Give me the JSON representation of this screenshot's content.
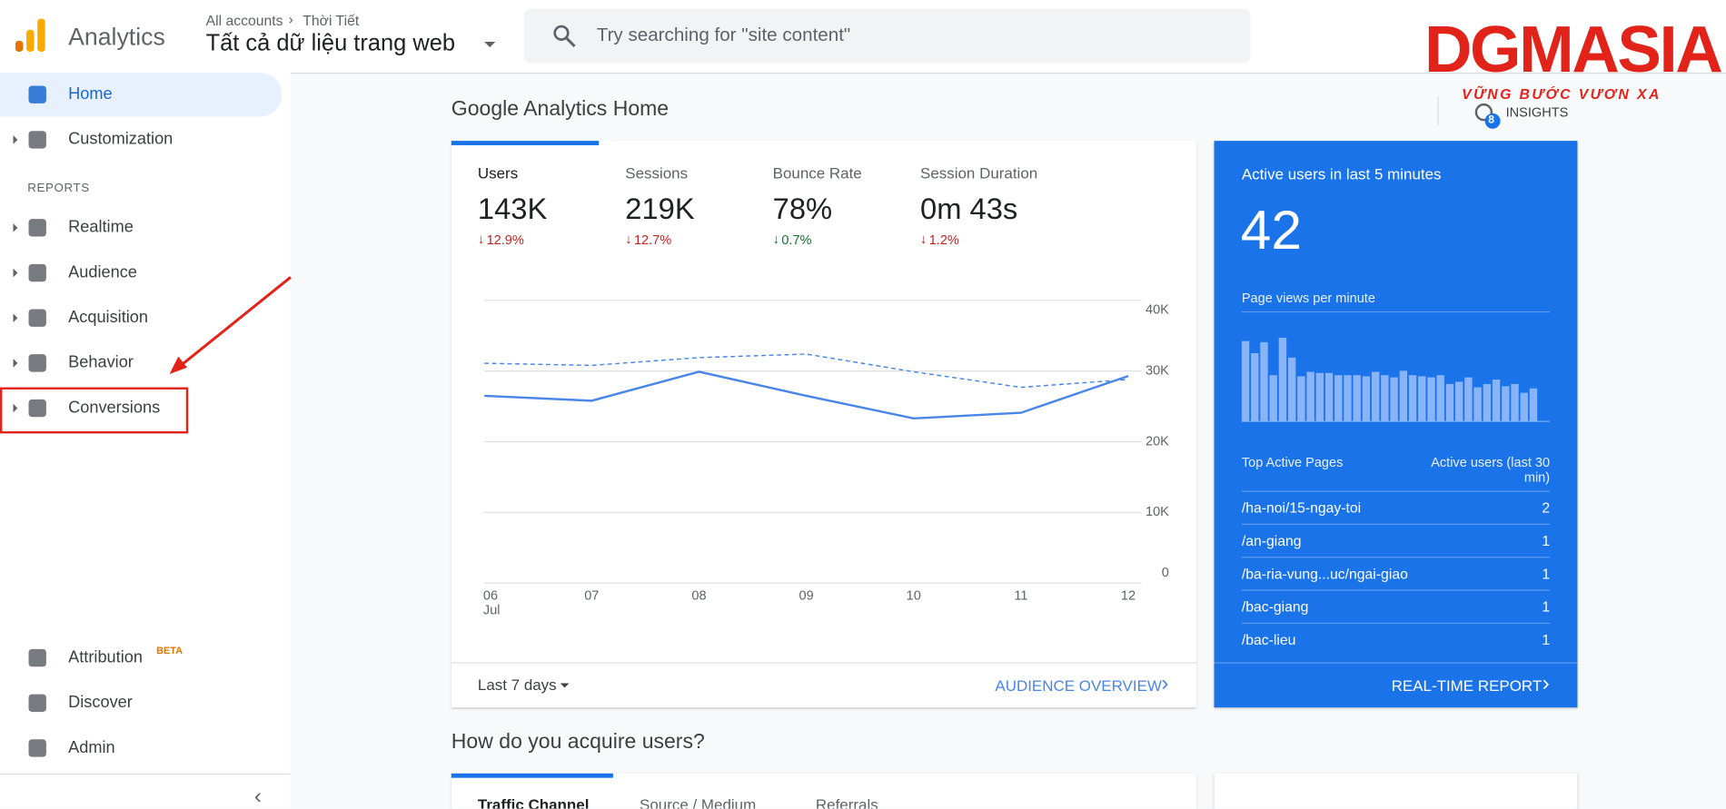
{
  "header": {
    "product": "Analytics",
    "breadcrumb": [
      "All accounts",
      "Thời Tiết"
    ],
    "view": "Tất cả dữ liệu trang web",
    "search_placeholder": "Try searching for \"site content\"",
    "insights": "INSIGHTS",
    "insights_badge": "8",
    "watermark": {
      "brand": "DGMASIA",
      "slogan": "VỮNG BƯỚC VƯƠN XA"
    }
  },
  "nav": {
    "top": [
      {
        "label": "Home",
        "expandable": false
      },
      {
        "label": "Customization",
        "expandable": true
      }
    ],
    "section": "REPORTS",
    "reports": [
      {
        "label": "Realtime",
        "expandable": true
      },
      {
        "label": "Audience",
        "expandable": true
      },
      {
        "label": "Acquisition",
        "expandable": true
      },
      {
        "label": "Behavior",
        "expandable": true
      },
      {
        "label": "Conversions",
        "expandable": true
      }
    ],
    "bottom": [
      {
        "label": "Attribution",
        "badge": "BETA"
      },
      {
        "label": "Discover"
      },
      {
        "label": "Admin"
      }
    ]
  },
  "main": {
    "title": "Google Analytics Home",
    "metrics": [
      {
        "label": "Users",
        "value": "143K",
        "change": "12.9%",
        "color": "#c5221f"
      },
      {
        "label": "Sessions",
        "value": "219K",
        "change": "12.7%",
        "color": "#c5221f"
      },
      {
        "label": "Bounce Rate",
        "value": "78%",
        "change": "0.7%",
        "color": "#137333"
      },
      {
        "label": "Session Duration",
        "value": "0m 43s",
        "change": "1.2%",
        "color": "#c5221f"
      }
    ],
    "date_range": "Last 7 days",
    "overview_link": "AUDIENCE OVERVIEW",
    "section2_title": "How do you acquire users?",
    "tabs": [
      "Traffic Channel",
      "Source / Medium",
      "Referrals"
    ]
  },
  "chart_data": {
    "type": "line",
    "categories": [
      "06",
      "07",
      "08",
      "09",
      "10",
      "11",
      "12"
    ],
    "x_sublabel": "Jul",
    "ylim": [
      0,
      40000
    ],
    "yticks": [
      {
        "value": 0,
        "label": "0"
      },
      {
        "value": 10000,
        "label": "10K"
      },
      {
        "value": 20000,
        "label": "20K"
      },
      {
        "value": 30000,
        "label": "30K"
      },
      {
        "value": 40000,
        "label": "40K"
      }
    ],
    "grid": true,
    "series": [
      {
        "color": "#4a86e8",
        "dash": false,
        "values": [
          26500,
          25800,
          29900,
          26500,
          23300,
          24100,
          29300
        ]
      },
      {
        "color": "#4a86e8",
        "dash": true,
        "values": [
          31100,
          30800,
          31900,
          32400,
          29900,
          27700,
          28800
        ]
      }
    ]
  },
  "realtime": {
    "title": "Active users in last 5 minutes",
    "active_users": "42",
    "pageviews_label": "Page views per minute",
    "pageviews": {
      "type": "bar",
      "color": "#8ab4f8",
      "ylim": [
        0,
        80
      ],
      "values": [
        73,
        62,
        72,
        42,
        76,
        58,
        41,
        45,
        44,
        44,
        42,
        42,
        42,
        41,
        45,
        42,
        40,
        46,
        42,
        41,
        40,
        42,
        34,
        36,
        40,
        31,
        34,
        38,
        32,
        34,
        26,
        30
      ]
    },
    "pages_header": "Top Active Pages",
    "users_header": "Active users (last 30 min)",
    "rows": [
      {
        "page": "/ha-noi/15-ngay-toi",
        "users": "2"
      },
      {
        "page": "/an-giang",
        "users": "1"
      },
      {
        "page": "/ba-ria-vung...uc/ngai-giao",
        "users": "1"
      },
      {
        "page": "/bac-giang",
        "users": "1"
      },
      {
        "page": "/bac-lieu",
        "users": "1"
      }
    ],
    "report_link": "REAL-TIME REPORT"
  }
}
